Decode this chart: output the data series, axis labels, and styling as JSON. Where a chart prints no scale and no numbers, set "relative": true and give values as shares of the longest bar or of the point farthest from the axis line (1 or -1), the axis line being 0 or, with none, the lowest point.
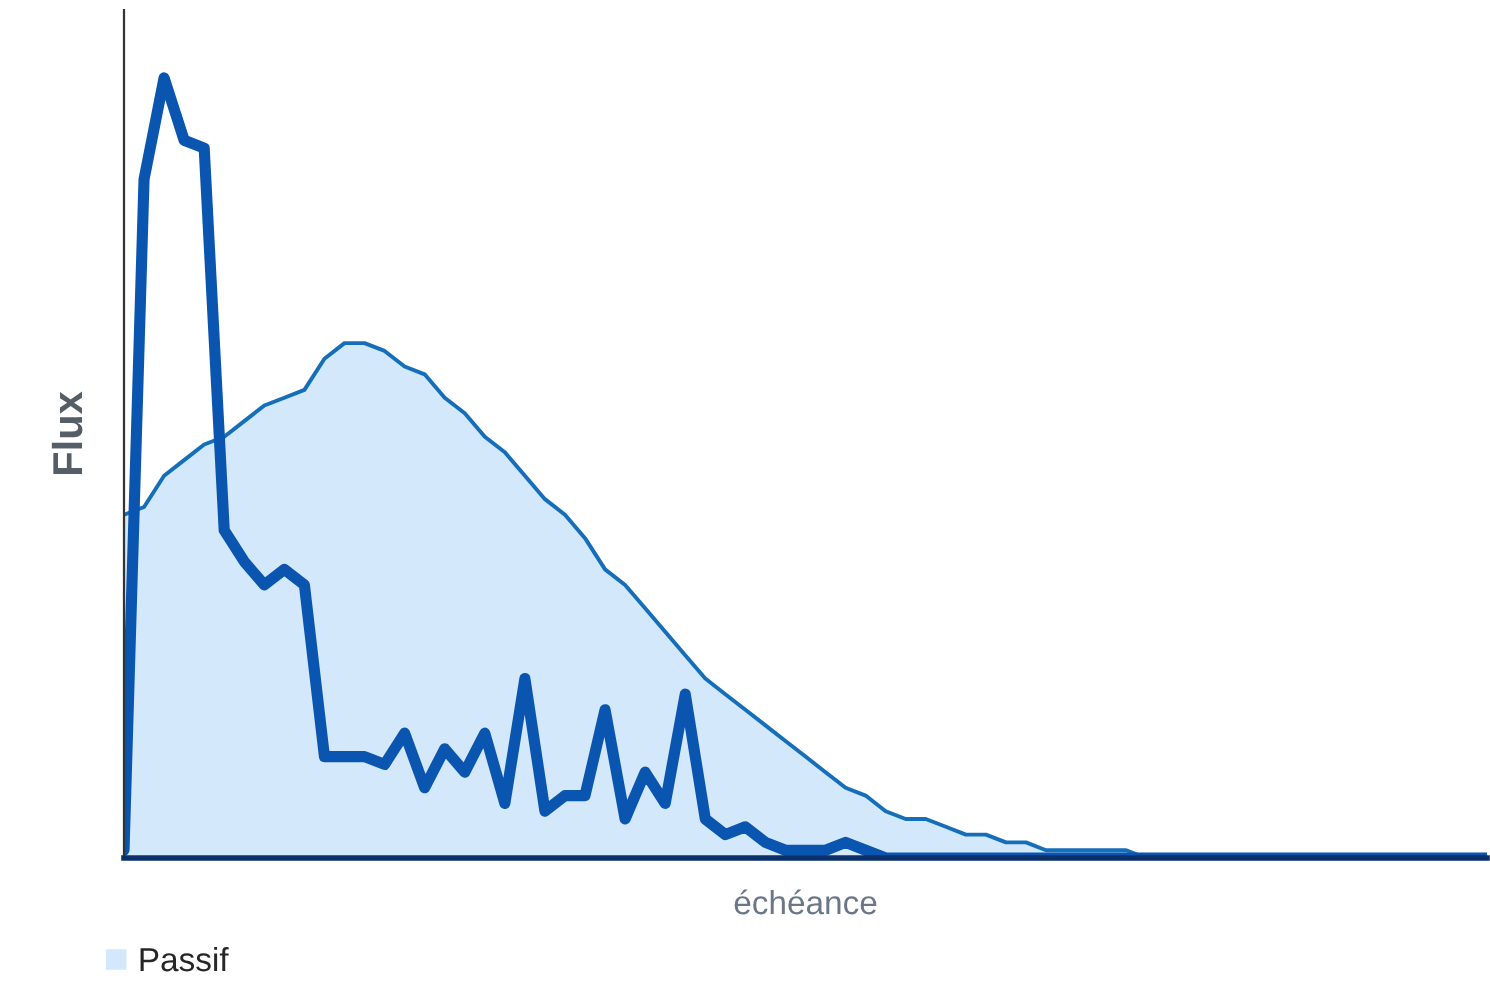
{
  "chart_data": {
    "type": "area",
    "relative": true,
    "xlabel": "échéance",
    "ylabel": "Flux",
    "legend": "bottom left",
    "grid": false,
    "categories": [
      null,
      null,
      null,
      null,
      null,
      null,
      null,
      null,
      null,
      null,
      null,
      null,
      null,
      null,
      null,
      null,
      null,
      null,
      null,
      null,
      null,
      null,
      null,
      null,
      null,
      null,
      null,
      null,
      null,
      null,
      null,
      null,
      null,
      null,
      null,
      null,
      null,
      null,
      null,
      null,
      null,
      null,
      null,
      null,
      null,
      null,
      null,
      null,
      null,
      null,
      null,
      null,
      null,
      null,
      null,
      null,
      null,
      null,
      null,
      null,
      null,
      null,
      null,
      null,
      null,
      null,
      null,
      null,
      null
    ],
    "series": [
      {
        "name": "Passif",
        "color": "#d3e8fa",
        "values": [
          0.44,
          0.45,
          0.49,
          0.51,
          0.53,
          0.54,
          0.56,
          0.58,
          0.59,
          0.6,
          0.64,
          0.66,
          0.66,
          0.65,
          0.63,
          0.62,
          0.59,
          0.57,
          0.54,
          0.52,
          0.49,
          0.46,
          0.44,
          0.41,
          0.37,
          0.35,
          0.32,
          0.29,
          0.26,
          0.23,
          0.21,
          0.19,
          0.17,
          0.15,
          0.13,
          0.11,
          0.09,
          0.08,
          0.06,
          0.05,
          0.05,
          0.04,
          0.03,
          0.03,
          0.02,
          0.02,
          0.01,
          0.01,
          0.01,
          0.01,
          0.01,
          0,
          0,
          0,
          0,
          0,
          0,
          0,
          0,
          0,
          0,
          0,
          0,
          0,
          0,
          0,
          0,
          0,
          0
        ]
      },
      {
        "type": "line",
        "color": "#0a55b0",
        "values": [
          0.01,
          0.87,
          1.0,
          0.92,
          0.91,
          0.42,
          0.38,
          0.35,
          0.37,
          0.35,
          0.13,
          0.13,
          0.13,
          0.12,
          0.16,
          0.09,
          0.14,
          0.11,
          0.16,
          0.07,
          0.23,
          0.06,
          0.08,
          0.08,
          0.19,
          0.05,
          0.11,
          0.07,
          0.21,
          0.05,
          0.03,
          0.04,
          0.02,
          0.01,
          0.01,
          0.01,
          0.02,
          0.01,
          0,
          0,
          0,
          0,
          0,
          0,
          0,
          0,
          0,
          0,
          0,
          0,
          0,
          0,
          0,
          0,
          0,
          0,
          0,
          0,
          0,
          0,
          0,
          0,
          0,
          0,
          0,
          0,
          0,
          0,
          0
        ]
      }
    ]
  }
}
